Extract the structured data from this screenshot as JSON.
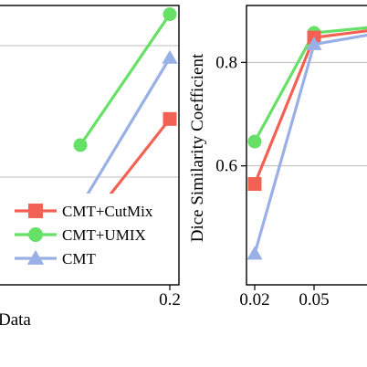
{
  "chart_data": [
    {
      "type": "line",
      "xlabel": "Data",
      "ylabel": "",
      "x_ticks": [
        "0.2"
      ],
      "legend": {
        "placement": "bottom-right",
        "entries": [
          "CMT+CutMix",
          "CMT+UMIX",
          "CMT"
        ]
      },
      "series": [
        {
          "name": "CMT+UMIX",
          "color": "#66e066",
          "marker": "circle",
          "points": [
            {
              "x": 0.1,
              "y": 0.76
            },
            {
              "x": 0.2,
              "y": 0.91
            }
          ]
        },
        {
          "name": "CMT",
          "color": "#99b0e6",
          "marker": "triangle",
          "points": [
            {
              "x": 0.1,
              "y": 0.69
            },
            {
              "x": 0.2,
              "y": 0.86
            }
          ]
        },
        {
          "name": "CMT+CutMix",
          "color": "#f26153",
          "marker": "square",
          "points": [
            {
              "x": 0.1,
              "y": 0.66
            },
            {
              "x": 0.2,
              "y": 0.79
            }
          ]
        }
      ],
      "grid": true
    },
    {
      "type": "line",
      "xlabel": "",
      "ylabel": "Dice Similarity Coefficient",
      "x_ticks": [
        "0.02",
        "0.05"
      ],
      "y_ticks": [
        "0.6",
        "0.8"
      ],
      "ylim": [
        0.37,
        0.91
      ],
      "series": [
        {
          "name": "CMT+UMIX",
          "color": "#66e066",
          "marker": "circle",
          "points": [
            {
              "x": 0.02,
              "y": 0.647
            },
            {
              "x": 0.05,
              "y": 0.857
            },
            {
              "x": 0.1,
              "y": 0.87
            }
          ]
        },
        {
          "name": "CMT+CutMix",
          "color": "#f26153",
          "marker": "square",
          "points": [
            {
              "x": 0.02,
              "y": 0.565
            },
            {
              "x": 0.05,
              "y": 0.848
            },
            {
              "x": 0.1,
              "y": 0.865
            }
          ]
        },
        {
          "name": "CMT",
          "color": "#99b0e6",
          "marker": "triangle",
          "points": [
            {
              "x": 0.02,
              "y": 0.43
            },
            {
              "x": 0.05,
              "y": 0.835
            },
            {
              "x": 0.1,
              "y": 0.858
            }
          ]
        }
      ],
      "grid": true
    }
  ]
}
